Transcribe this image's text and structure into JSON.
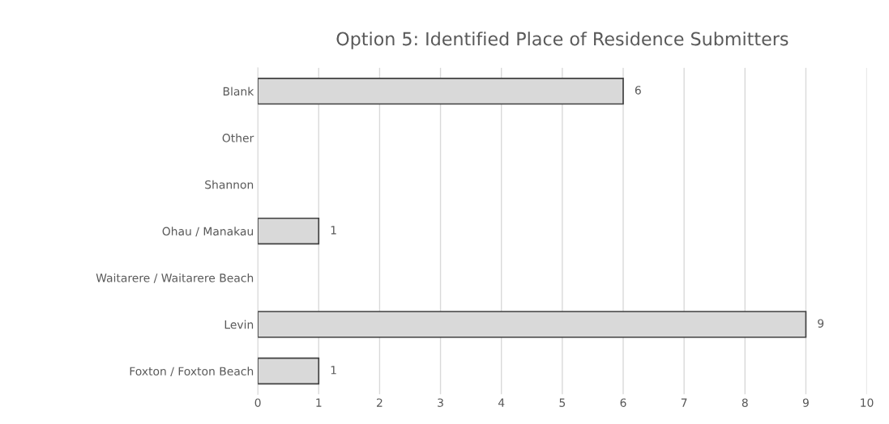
{
  "chart_data": {
    "type": "bar",
    "orientation": "horizontal",
    "title": "Option 5: Identified Place of Residence Submitters",
    "categories": [
      "Blank",
      "Other",
      "Shannon",
      "Ohau / Manakau",
      "Waitarere / Waitarere Beach",
      "Levin",
      "Foxton / Foxton Beach"
    ],
    "values": [
      6,
      null,
      null,
      1,
      null,
      9,
      1
    ],
    "value_labels": [
      "6",
      null,
      null,
      "1",
      null,
      "9",
      "1"
    ],
    "color": "#d9d9d9",
    "xlim": [
      0,
      10
    ],
    "xticks": [
      0,
      1,
      2,
      3,
      4,
      5,
      6,
      7,
      8,
      9,
      10
    ],
    "grid": "x"
  }
}
